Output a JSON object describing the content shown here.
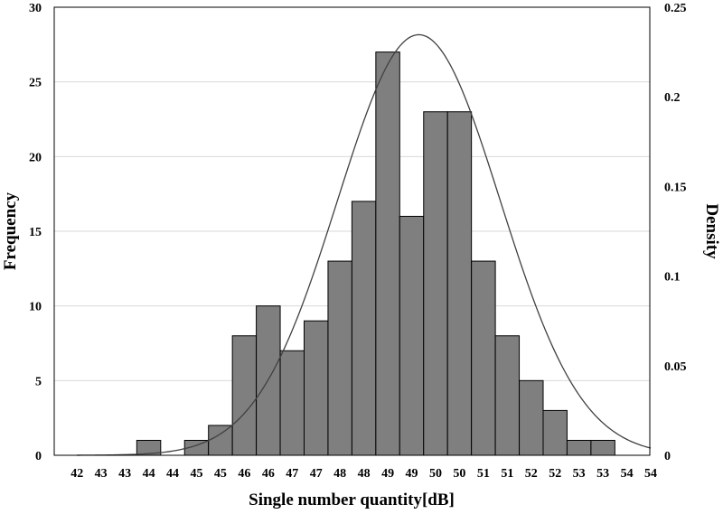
{
  "chart_data": {
    "type": "bar",
    "xlabel": "Single number quantity[dB]",
    "ylabel": "Frequency",
    "y2label": "Density",
    "x_tick_labels": [
      "42",
      "43",
      "43",
      "44",
      "44",
      "45",
      "45",
      "46",
      "46",
      "47",
      "47",
      "48",
      "48",
      "49",
      "49",
      "50",
      "50",
      "51",
      "51",
      "52",
      "52",
      "53",
      "53",
      "54",
      "54"
    ],
    "y_ticks": [
      "0",
      "5",
      "10",
      "15",
      "20",
      "25",
      "30"
    ],
    "y2_ticks": [
      "0",
      "0.05",
      "0.1",
      "0.15",
      "0.2",
      "0.25"
    ],
    "ylim": [
      0,
      30
    ],
    "y2lim": [
      0,
      0.25
    ],
    "grid": true,
    "series": [
      {
        "type": "histogram",
        "values": [
          0,
          0,
          0,
          1,
          0,
          1,
          2,
          8,
          10,
          7,
          9,
          13,
          17,
          27,
          16,
          23,
          23,
          13,
          8,
          5,
          3,
          1,
          1,
          0,
          0
        ]
      },
      {
        "type": "normal-curve",
        "mean": 49.15,
        "std": 1.7,
        "x_range": [
          42,
          54
        ]
      }
    ],
    "colors": {
      "bar_fill": "#7f7f7f",
      "bar_edge": "#000000",
      "curve": "#404040",
      "grid": "#d9d9d9"
    }
  }
}
